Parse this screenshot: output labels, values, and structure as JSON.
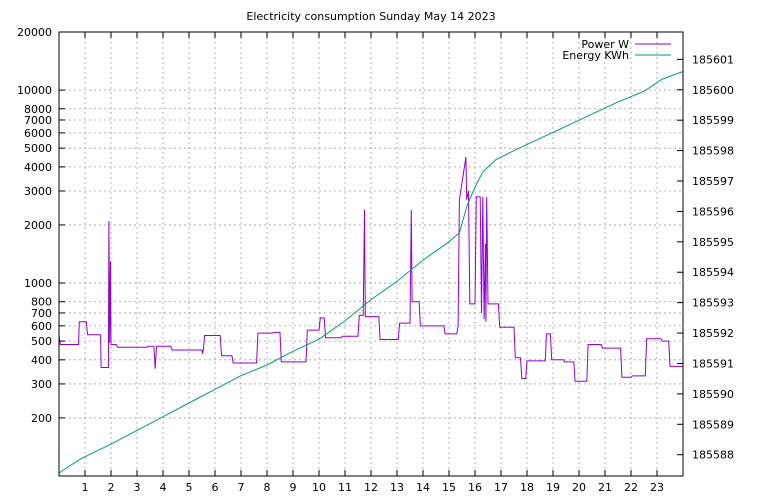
{
  "chart_data": {
    "type": "line",
    "title": "Electricity consumption Sunday May 14 2023",
    "xlabel": "",
    "ylabel": "",
    "x_ticks": [
      1,
      2,
      3,
      4,
      5,
      6,
      7,
      8,
      9,
      10,
      11,
      12,
      13,
      14,
      15,
      16,
      17,
      18,
      19,
      20,
      21,
      22,
      23
    ],
    "x_range": [
      0,
      24
    ],
    "y_scale": "log",
    "ylim": [
      100,
      20000
    ],
    "y_ticks": [
      200,
      300,
      400,
      500,
      600,
      700,
      800,
      1000,
      2000,
      3000,
      4000,
      5000,
      6000,
      7000,
      8000,
      10000,
      20000
    ],
    "y2lim": [
      185587.3,
      185601.9
    ],
    "y2_ticks": [
      185588,
      185589,
      185590,
      185591,
      185592,
      185593,
      185594,
      185595,
      185596,
      185597,
      185598,
      185599,
      185600,
      185601
    ],
    "grid": true,
    "legend_position": "top-right",
    "series": [
      {
        "name": "Power W",
        "color": "#9400d3",
        "axis": "left",
        "points": [
          [
            0,
            540
          ],
          [
            0.05,
            480
          ],
          [
            0.75,
            480
          ],
          [
            0.78,
            630
          ],
          [
            1.05,
            630
          ],
          [
            1.1,
            540
          ],
          [
            1.6,
            540
          ],
          [
            1.62,
            365
          ],
          [
            1.9,
            365
          ],
          [
            1.92,
            2100
          ],
          [
            1.95,
            490
          ],
          [
            1.98,
            1300
          ],
          [
            2.0,
            480
          ],
          [
            2.2,
            480
          ],
          [
            2.25,
            465
          ],
          [
            3.4,
            465
          ],
          [
            3.45,
            470
          ],
          [
            3.65,
            470
          ],
          [
            3.7,
            360
          ],
          [
            3.75,
            470
          ],
          [
            4.3,
            470
          ],
          [
            4.35,
            450
          ],
          [
            5.5,
            450
          ],
          [
            5.52,
            430
          ],
          [
            5.55,
            450
          ],
          [
            5.6,
            535
          ],
          [
            6.2,
            535
          ],
          [
            6.25,
            420
          ],
          [
            6.65,
            420
          ],
          [
            6.7,
            385
          ],
          [
            7.6,
            385
          ],
          [
            7.65,
            550
          ],
          [
            8.2,
            550
          ],
          [
            8.3,
            555
          ],
          [
            8.5,
            555
          ],
          [
            8.55,
            390
          ],
          [
            9.5,
            390
          ],
          [
            9.55,
            570
          ],
          [
            10.0,
            570
          ],
          [
            10.05,
            660
          ],
          [
            10.2,
            660
          ],
          [
            10.25,
            520
          ],
          [
            10.85,
            520
          ],
          [
            10.9,
            530
          ],
          [
            11.5,
            530
          ],
          [
            11.55,
            680
          ],
          [
            11.7,
            680
          ],
          [
            11.75,
            2400
          ],
          [
            11.78,
            670
          ],
          [
            12.3,
            670
          ],
          [
            12.35,
            510
          ],
          [
            13.05,
            510
          ],
          [
            13.1,
            620
          ],
          [
            13.5,
            620
          ],
          [
            13.55,
            2400
          ],
          [
            13.58,
            800
          ],
          [
            13.85,
            800
          ],
          [
            13.9,
            600
          ],
          [
            14.8,
            600
          ],
          [
            14.85,
            545
          ],
          [
            15.3,
            545
          ],
          [
            15.35,
            600
          ],
          [
            15.4,
            2700
          ],
          [
            15.65,
            4500
          ],
          [
            15.68,
            2700
          ],
          [
            15.75,
            3000
          ],
          [
            15.8,
            780
          ],
          [
            16.0,
            780
          ],
          [
            16.05,
            2800
          ],
          [
            16.2,
            2800
          ],
          [
            16.25,
            700
          ],
          [
            16.3,
            2800
          ],
          [
            16.35,
            650
          ],
          [
            16.4,
            1600
          ],
          [
            16.42,
            630
          ],
          [
            16.45,
            2800
          ],
          [
            16.5,
            780
          ],
          [
            16.9,
            780
          ],
          [
            16.95,
            590
          ],
          [
            17.5,
            590
          ],
          [
            17.55,
            410
          ],
          [
            17.75,
            410
          ],
          [
            17.8,
            320
          ],
          [
            17.95,
            320
          ],
          [
            18.0,
            395
          ],
          [
            18.7,
            395
          ],
          [
            18.75,
            545
          ],
          [
            18.9,
            545
          ],
          [
            18.95,
            400
          ],
          [
            19.4,
            400
          ],
          [
            19.45,
            390
          ],
          [
            19.8,
            390
          ],
          [
            19.85,
            310
          ],
          [
            20.3,
            310
          ],
          [
            20.35,
            480
          ],
          [
            20.85,
            480
          ],
          [
            20.9,
            460
          ],
          [
            21.6,
            460
          ],
          [
            21.65,
            325
          ],
          [
            22.0,
            325
          ],
          [
            22.05,
            330
          ],
          [
            22.55,
            330
          ],
          [
            22.6,
            515
          ],
          [
            23.15,
            515
          ],
          [
            23.2,
            500
          ],
          [
            23.45,
            500
          ],
          [
            23.5,
            370
          ],
          [
            24.0,
            370
          ]
        ]
      },
      {
        "name": "Energy KWh",
        "color": "#009e73",
        "axis": "right",
        "points": [
          [
            0,
            185587.4
          ],
          [
            0.8,
            185587.85
          ],
          [
            2.0,
            185588.35
          ],
          [
            3.0,
            185588.8
          ],
          [
            4.0,
            185589.25
          ],
          [
            5.0,
            185589.7
          ],
          [
            6.0,
            185590.15
          ],
          [
            7.0,
            185590.6
          ],
          [
            8.0,
            185590.95
          ],
          [
            9.0,
            185591.4
          ],
          [
            10.0,
            185591.8
          ],
          [
            11.0,
            185592.4
          ],
          [
            12.0,
            185593.1
          ],
          [
            13.0,
            185593.7
          ],
          [
            14.0,
            185594.4
          ],
          [
            15.0,
            185595.0
          ],
          [
            15.4,
            185595.3
          ],
          [
            15.7,
            185596.2
          ],
          [
            16.0,
            185596.8
          ],
          [
            16.3,
            185597.3
          ],
          [
            16.8,
            185597.7
          ],
          [
            17.5,
            185598.0
          ],
          [
            18.5,
            185598.4
          ],
          [
            19.5,
            185598.8
          ],
          [
            20.5,
            185599.2
          ],
          [
            21.5,
            185599.6
          ],
          [
            22.5,
            185599.95
          ],
          [
            23.2,
            185600.35
          ],
          [
            24.0,
            185600.6
          ]
        ]
      }
    ]
  }
}
